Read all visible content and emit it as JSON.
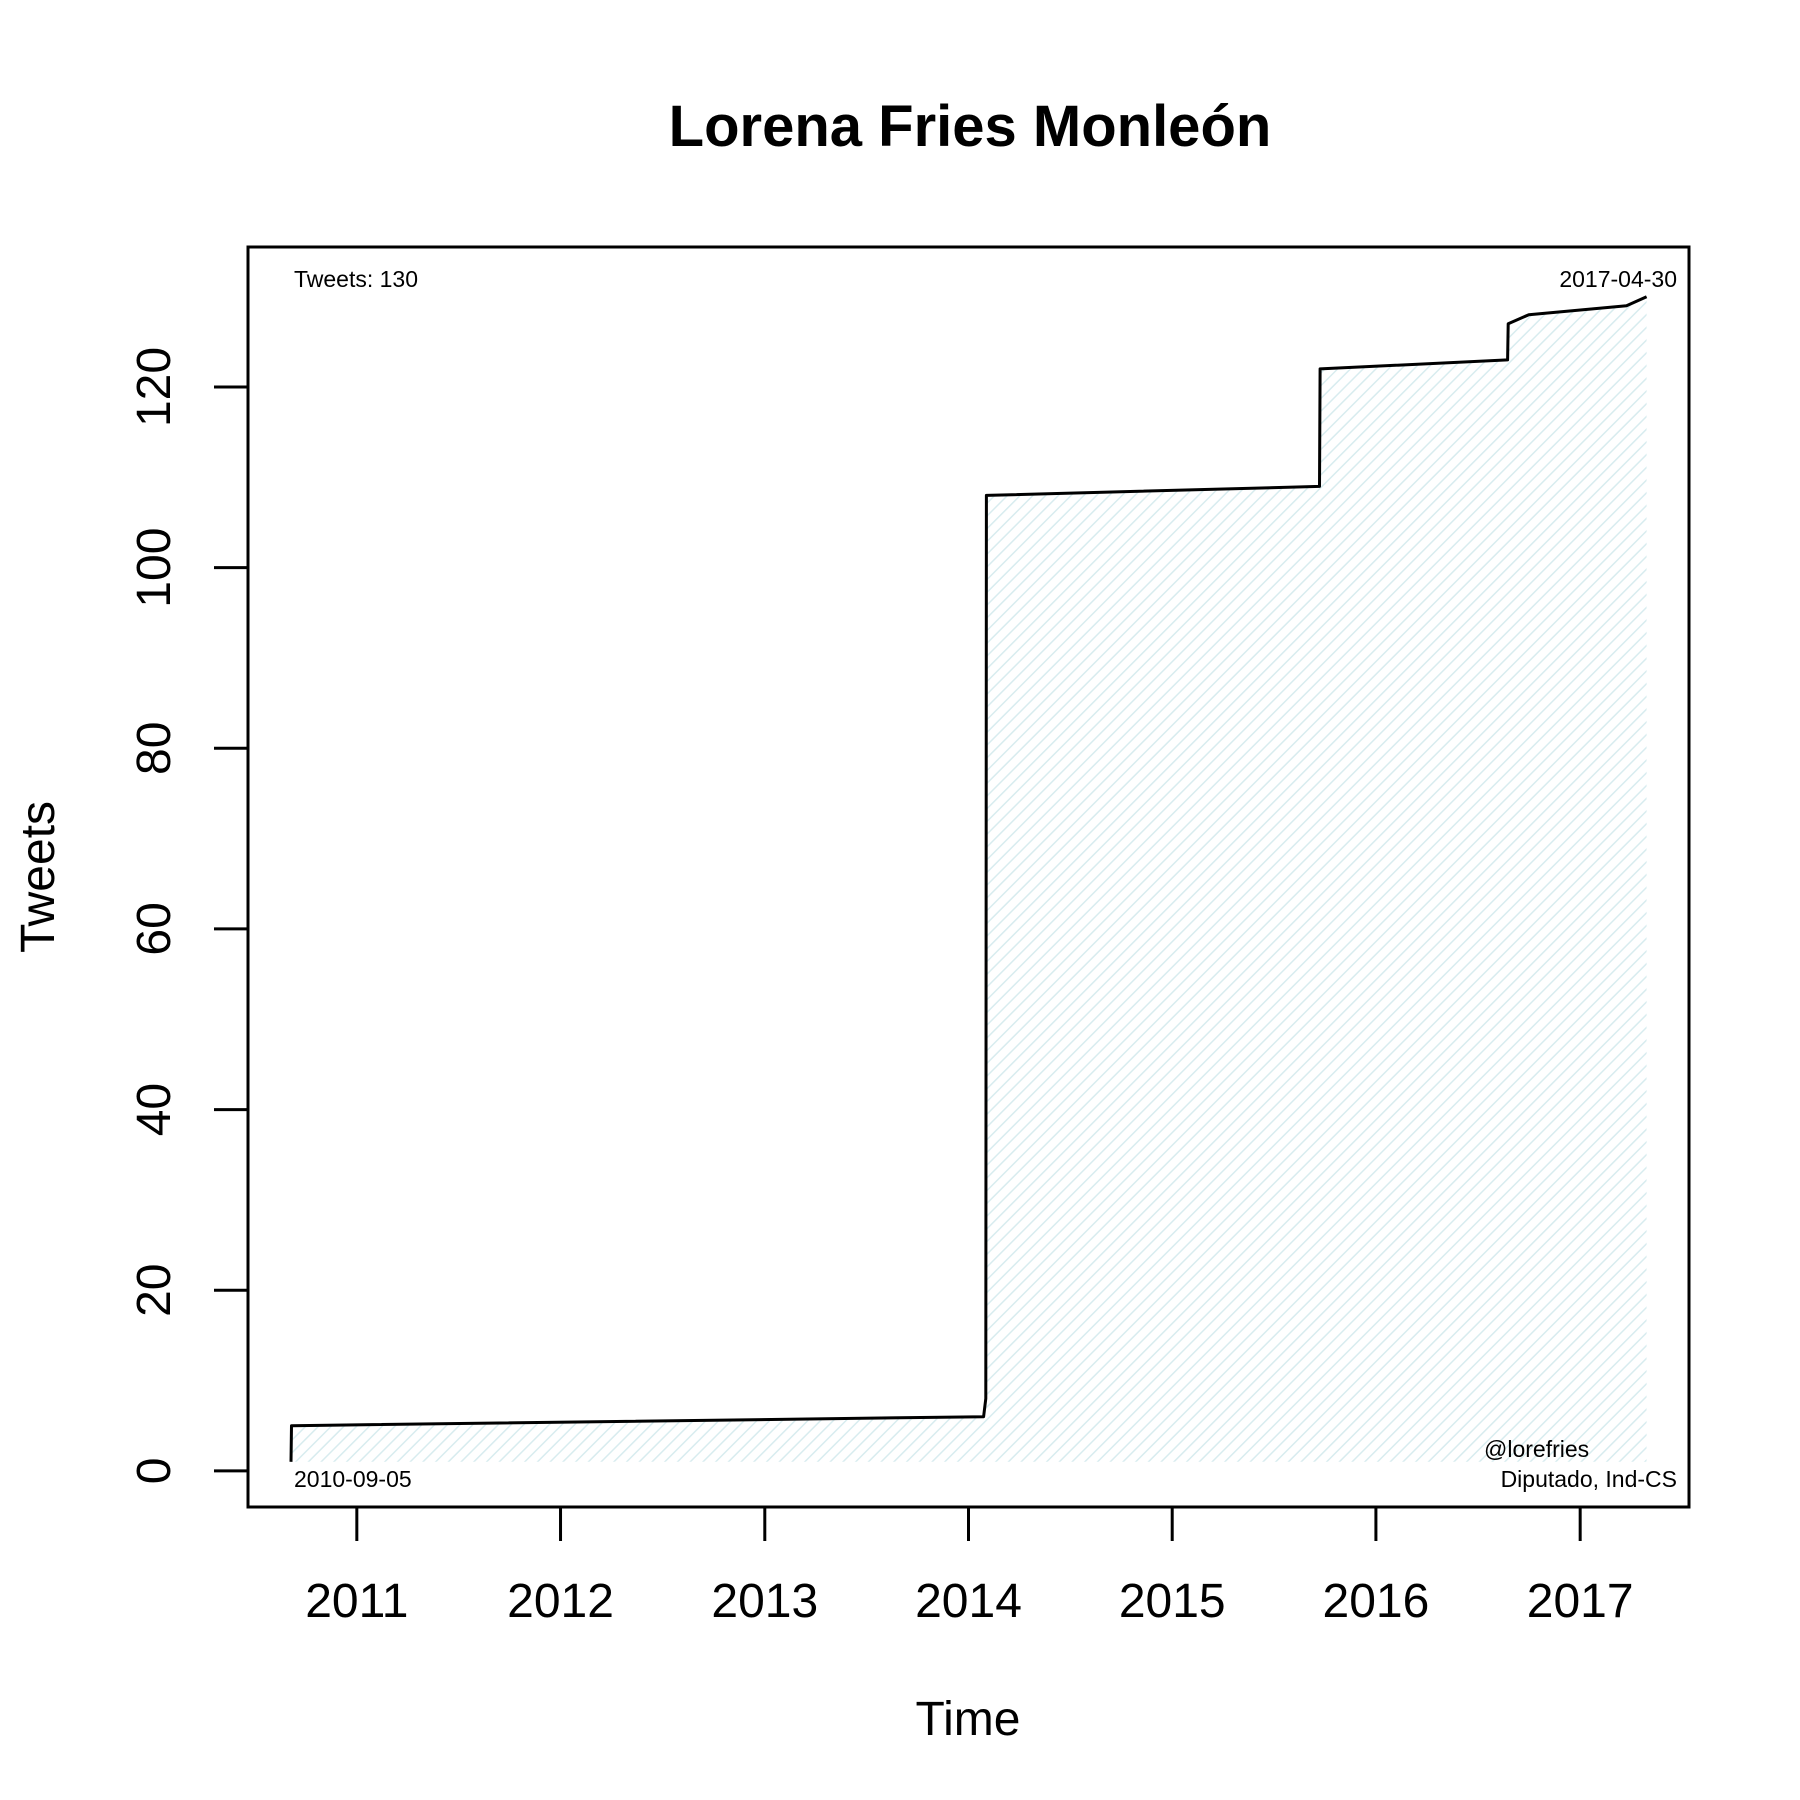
{
  "chart_data": {
    "type": "area",
    "title": "Lorena Fries Monleón",
    "xlabel": "Time",
    "ylabel": "Tweets",
    "xlim": [
      "2010-06-20",
      "2017-07-15"
    ],
    "ylim": [
      -4,
      135.5
    ],
    "x_ticks": [
      "2011",
      "2012",
      "2013",
      "2014",
      "2015",
      "2016",
      "2017"
    ],
    "y_ticks": [
      "0",
      "20",
      "40",
      "60",
      "80",
      "100",
      "120"
    ],
    "grid": false,
    "series": [
      {
        "points": [
          {
            "x": "2010-09-05",
            "y": 1
          },
          {
            "x": "2010-09-06",
            "y": 5
          },
          {
            "x": "2014-01-28",
            "y": 6
          },
          {
            "x": "2014-02-01",
            "y": 8
          },
          {
            "x": "2014-02-02",
            "y": 108
          },
          {
            "x": "2015-09-22",
            "y": 109
          },
          {
            "x": "2015-09-23",
            "y": 122
          },
          {
            "x": "2016-08-24",
            "y": 123
          },
          {
            "x": "2016-08-25",
            "y": 127
          },
          {
            "x": "2016-10-01",
            "y": 128
          },
          {
            "x": "2017-03-25",
            "y": 129
          },
          {
            "x": "2017-04-30",
            "y": 130
          }
        ]
      }
    ],
    "fill_color": "#e8f4f6",
    "line_color": "#000000",
    "annotations": {
      "count_label": "Tweets: 130",
      "start_date": "2010-09-05",
      "end_date": "2017-04-30",
      "handle": "@lorefries",
      "description": "Diputado, Ind-CS"
    }
  }
}
